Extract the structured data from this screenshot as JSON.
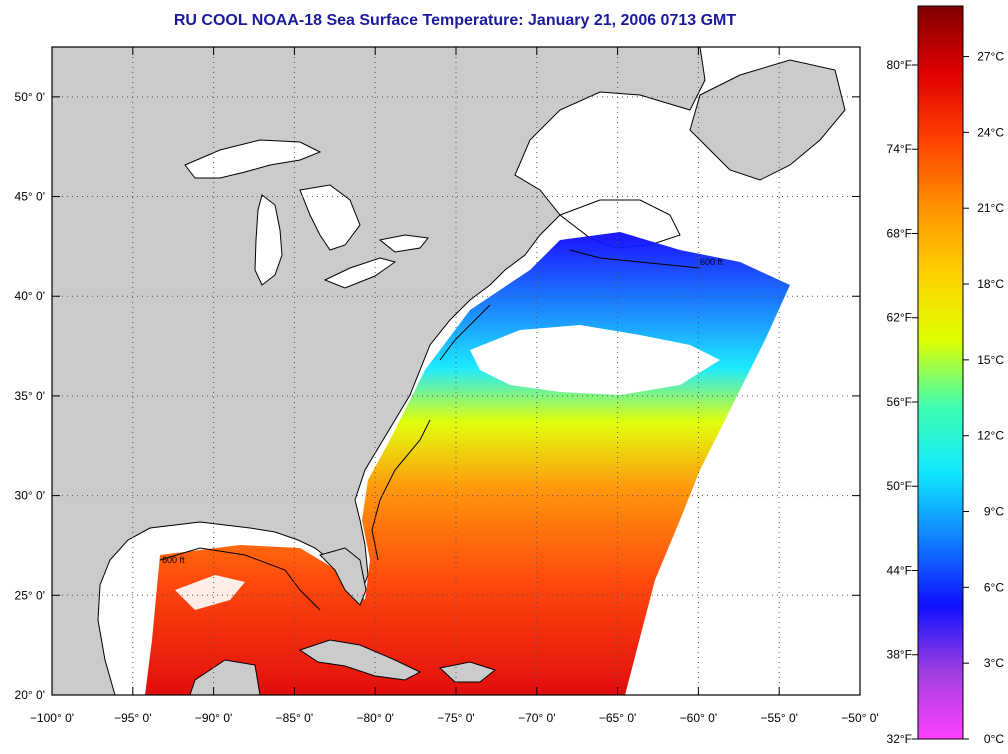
{
  "title": "RU COOL  NOAA-18  Sea Surface Temperature:  January 21, 2006 0713 GMT",
  "map": {
    "lon_range": [
      -100,
      -50
    ],
    "lat_range": [
      20,
      52.5
    ],
    "land_color": "#cbcbcb",
    "cloud_color": "#ffffff",
    "lon_ticks": [
      {
        "value": -100,
        "label": "−100° 0'"
      },
      {
        "value": -95,
        "label": "−95° 0'"
      },
      {
        "value": -90,
        "label": "−90° 0'"
      },
      {
        "value": -85,
        "label": "−85° 0'"
      },
      {
        "value": -80,
        "label": "−80° 0'"
      },
      {
        "value": -75,
        "label": "−75° 0'"
      },
      {
        "value": -70,
        "label": "−70° 0'"
      },
      {
        "value": -65,
        "label": "−65° 0'"
      },
      {
        "value": -60,
        "label": "−60° 0'"
      },
      {
        "value": -55,
        "label": "−55° 0'"
      },
      {
        "value": -50,
        "label": "−50° 0'"
      }
    ],
    "lat_ticks": [
      {
        "value": 20,
        "label": "20° 0'"
      },
      {
        "value": 25,
        "label": "25° 0'"
      },
      {
        "value": 30,
        "label": "30° 0'"
      },
      {
        "value": 35,
        "label": "35° 0'"
      },
      {
        "value": 40,
        "label": "40° 0'"
      },
      {
        "value": 45,
        "label": "45° 0'"
      },
      {
        "value": 50,
        "label": "50° 0'"
      }
    ],
    "contour_label": "600 ft"
  },
  "colorbar": {
    "min_c": 0,
    "max_c": 29,
    "fahrenheit_labels": [
      "32°F",
      "38°F",
      "44°F",
      "50°F",
      "56°F",
      "62°F",
      "68°F",
      "74°F",
      "80°F"
    ],
    "fahrenheit_values": [
      32,
      38,
      44,
      50,
      56,
      62,
      68,
      74,
      80
    ],
    "celsius_labels": [
      "0°C",
      "3°C",
      "6°C",
      "9°C",
      "12°C",
      "15°C",
      "18°C",
      "21°C",
      "24°C",
      "27°C"
    ],
    "celsius_values": [
      0,
      3,
      6,
      9,
      12,
      15,
      18,
      21,
      24,
      27
    ],
    "colors": [
      "#ff40ff",
      "#a040e0",
      "#1010ff",
      "#1080ff",
      "#10e8ff",
      "#40ffb0",
      "#e0ff00",
      "#ffd000",
      "#ff9000",
      "#ff4000",
      "#e00000",
      "#800000"
    ]
  }
}
